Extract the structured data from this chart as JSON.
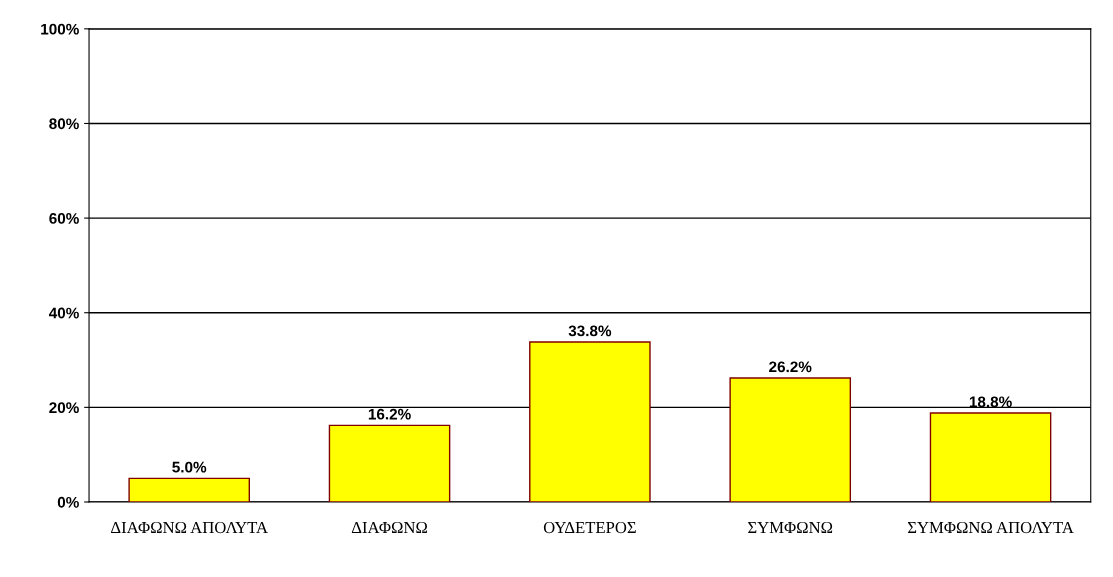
{
  "chart_data": {
    "type": "bar",
    "categories": [
      "ΔΙΑΦΩΝΩ ΑΠΟΛΥΤΑ",
      "ΔΙΑΦΩΝΩ",
      "ΟΥΔΕΤΕΡΟΣ",
      "ΣΥΜΦΩΝΩ",
      "ΣΥΜΦΩΝΩ ΑΠΟΛΥΤΑ"
    ],
    "values": [
      5.0,
      16.2,
      33.8,
      26.2,
      18.8
    ],
    "value_labels": [
      "5.0%",
      "16.2%",
      "33.8%",
      "26.2%",
      "18.8%"
    ],
    "color": "#ffff00",
    "ylim": [
      0,
      100
    ],
    "yticks": [
      {
        "value": 0,
        "label": "0%"
      },
      {
        "value": 20,
        "label": "20%"
      },
      {
        "value": 40,
        "label": "40%"
      },
      {
        "value": 60,
        "label": "60%"
      },
      {
        "value": 80,
        "label": "80%"
      },
      {
        "value": 100,
        "label": "100%"
      }
    ],
    "grid": "y"
  }
}
